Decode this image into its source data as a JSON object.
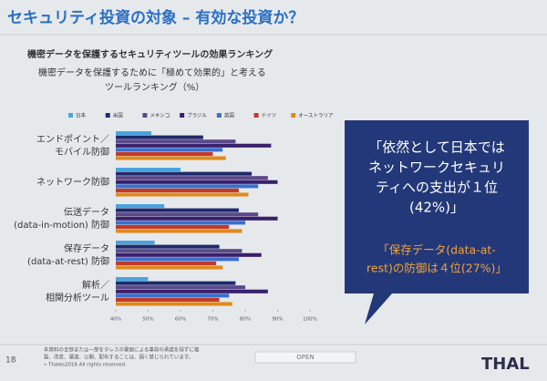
{
  "slide": {
    "title": "セキュリティ投資の対象 – 有効な投資か？",
    "subtitle": "機密データを保護するセキュリティツールの効果ランキング"
  },
  "chart_data": {
    "type": "hbar",
    "title": "機密データを保護するために「極めて効果的」と考える",
    "subtitle": "ツールランキング（%）",
    "categories": [
      "エンドポイント／\nモバイル防御",
      "ネットワーク防御",
      "伝送データ\n(data-in-motion) 防御",
      "保存データ\n(data-at-rest) 防御",
      "解析／\n相関分析ツール"
    ],
    "series": [
      {
        "name": "日本",
        "color": "#4aa3df",
        "values": [
          51,
          60,
          55,
          52,
          50
        ]
      },
      {
        "name": "米国",
        "color": "#1f2a6b",
        "values": [
          67,
          82,
          78,
          72,
          77
        ]
      },
      {
        "name": "メキシコ",
        "color": "#5b4a8a",
        "values": [
          77,
          87,
          84,
          79,
          80
        ]
      },
      {
        "name": "ブラジル",
        "color": "#3a1f6b",
        "values": [
          88,
          90,
          90,
          85,
          87
        ]
      },
      {
        "name": "英国",
        "color": "#3a6fcf",
        "values": [
          73,
          84,
          80,
          78,
          75
        ]
      },
      {
        "name": "ドイツ",
        "color": "#c0392b",
        "values": [
          70,
          78,
          75,
          71,
          72
        ]
      },
      {
        "name": "オーストラリア",
        "color": "#e08a1e",
        "values": [
          74,
          81,
          79,
          73,
          76
        ]
      }
    ],
    "xlim": [
      40,
      100
    ],
    "xticks": [
      {
        "value": 40,
        "label": "40%"
      },
      {
        "value": 50,
        "label": "50%"
      },
      {
        "value": 60,
        "label": "60%"
      },
      {
        "value": 70,
        "label": "70%"
      },
      {
        "value": 80,
        "label": "80%"
      },
      {
        "value": 90,
        "label": "90%"
      },
      {
        "value": 100,
        "label": "100%"
      }
    ],
    "grid": false
  },
  "callout": {
    "lines": [
      "「依然として日本では",
      "ネットワークセキュリ",
      "ティへの支出が１位",
      "(42%)」"
    ],
    "highlight_lines": [
      "「保存データ(data-at-",
      "rest)の防御は４位(27%)」"
    ]
  },
  "footer": {
    "page": "18",
    "notice_lines": [
      "本資料の全部または一部をタレスの書面による事前の承諾を得ずに複",
      "製、改変、譲渡、公開、配布することは、固く禁じられています。",
      "• Thales2016 All rights reserved."
    ],
    "classification": "OPEN",
    "logo": "THAL"
  }
}
